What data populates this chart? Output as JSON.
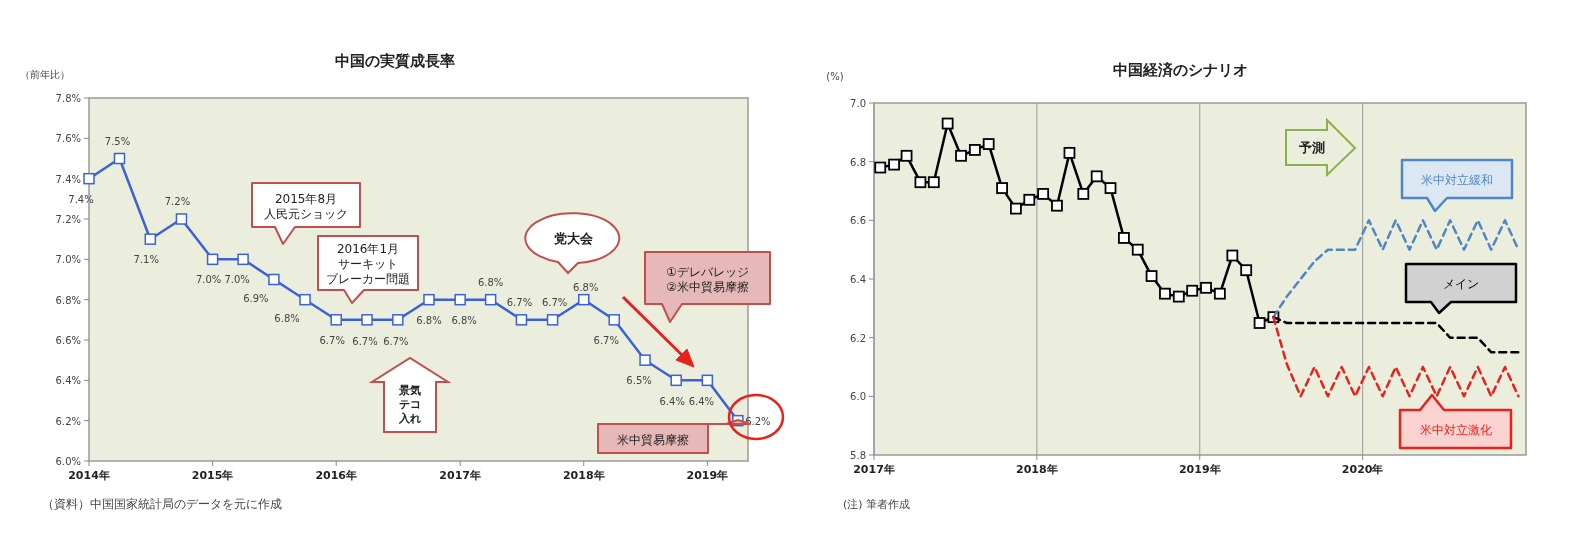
{
  "chart_data": [
    {
      "type": "line",
      "title": "中国の実質成長率",
      "ylabel": "（前年比）",
      "x": [
        "2014-01",
        "2014-04",
        "2014-07",
        "2014-10",
        "2015-01",
        "2015-04",
        "2015-07",
        "2015-10",
        "2016-01",
        "2016-04",
        "2016-07",
        "2016-10",
        "2017-01",
        "2017-04",
        "2017-07",
        "2017-10",
        "2018-01",
        "2018-04",
        "2018-07",
        "2018-10",
        "2019-01",
        "2019-04"
      ],
      "series": [
        {
          "color": "#3a62d6",
          "values": [
            7.4,
            7.5,
            7.1,
            7.2,
            7.0,
            7.0,
            6.9,
            6.8,
            6.7,
            6.7,
            6.7,
            6.8,
            6.8,
            6.8,
            6.7,
            6.7,
            6.8,
            6.7,
            6.5,
            6.4,
            6.4,
            6.2
          ],
          "value_labels": [
            "7.4%",
            "7.5%",
            "7.1%",
            "7.2%",
            "7.0%",
            "7.0%",
            "6.9%",
            "6.8%",
            "6.7%",
            "6.7%",
            "6.7%",
            "6.8%",
            "6.8%",
            "6.8%",
            "6.7%",
            "6.7%",
            "6.8%",
            "6.7%",
            "6.5%",
            "6.4%",
            "6.4%",
            "6.2%"
          ]
        }
      ],
      "marker": "square",
      "line_style": "solid",
      "xlim": [
        "2014-01",
        "2019-05"
      ],
      "xticks": [
        {
          "value": "2014",
          "label": "2014年"
        },
        {
          "value": "2015",
          "label": "2015年"
        },
        {
          "value": "2016",
          "label": "2016年"
        },
        {
          "value": "2017",
          "label": "2017年"
        },
        {
          "value": "2018",
          "label": "2018年"
        },
        {
          "value": "2019",
          "label": "2019年"
        }
      ],
      "ylim": [
        6.0,
        7.8
      ],
      "yticks": [
        {
          "value": 6.0,
          "label": "6.0%"
        },
        {
          "value": 6.2,
          "label": "6.2%"
        },
        {
          "value": 6.4,
          "label": "6.4%"
        },
        {
          "value": 6.6,
          "label": "6.6%"
        },
        {
          "value": 6.8,
          "label": "6.8%"
        },
        {
          "value": 7.0,
          "label": "7.0%"
        },
        {
          "value": 7.2,
          "label": "7.2%"
        },
        {
          "value": 7.4,
          "label": "7.4%"
        },
        {
          "value": 7.6,
          "label": "7.6%"
        },
        {
          "value": 7.8,
          "label": "7.8%"
        }
      ],
      "annotations": [
        "2015年8月人民元ショック",
        "2016年1月サーキットブレーカー問題",
        "景気テコ入れ",
        "党大会",
        "①デレバレッジ\n②米中貿易摩擦",
        "米中貿易摩擦",
        "（資料）中国国家統計局のデータを元に作成"
      ]
    },
    {
      "type": "line",
      "title": "中国経済のシナリオ",
      "ylabel": "(%)",
      "series": [
        {
          "color": "#000000",
          "marker": "square",
          "line_style": "solid",
          "x": [
            "2017-01-15",
            "2017-02-15",
            "2017-03-15",
            "2017-04-15",
            "2017-05-15",
            "2017-06-15",
            "2017-07-15",
            "2017-08-15",
            "2017-09-15",
            "2017-10-15",
            "2017-11-15",
            "2017-12-15",
            "2018-01-15",
            "2018-02-15",
            "2018-03-15",
            "2018-04-15",
            "2018-05-15",
            "2018-06-15",
            "2018-07-15",
            "2018-08-15",
            "2018-09-15",
            "2018-10-15",
            "2018-11-15",
            "2018-12-15",
            "2019-01-15",
            "2019-02-15",
            "2019-03-15",
            "2019-04-15",
            "2019-05-15",
            "2019-06-15"
          ],
          "values": [
            6.78,
            6.79,
            6.82,
            6.73,
            6.73,
            6.93,
            6.82,
            6.84,
            6.86,
            6.71,
            6.64,
            6.67,
            6.69,
            6.65,
            6.83,
            6.69,
            6.75,
            6.71,
            6.54,
            6.5,
            6.41,
            6.35,
            6.34,
            6.36,
            6.37,
            6.35,
            6.48,
            6.43,
            6.25,
            6.27
          ]
        },
        {
          "name": "米中対立緩和",
          "color": "#4f86c6",
          "marker": "none",
          "line_style": "dashed",
          "x": [
            "2019-06-15",
            "2019-07-15",
            "2019-08-15",
            "2019-09-15",
            "2019-10-15",
            "2019-11-15",
            "2019-12-15",
            "2020-01-15",
            "2020-02-15",
            "2020-03-15",
            "2020-04-15",
            "2020-05-15",
            "2020-06-15",
            "2020-07-15",
            "2020-08-15",
            "2020-09-15",
            "2020-10-15",
            "2020-11-15",
            "2020-12-15"
          ],
          "values": [
            6.27,
            6.34,
            6.4,
            6.46,
            6.5,
            6.5,
            6.5,
            6.6,
            6.5,
            6.6,
            6.5,
            6.6,
            6.5,
            6.6,
            6.5,
            6.6,
            6.5,
            6.6,
            6.5
          ]
        },
        {
          "name": "メイン",
          "color": "#000000",
          "marker": "none",
          "line_style": "dashed",
          "x": [
            "2019-06-15",
            "2019-07-15",
            "2019-08-15",
            "2019-09-15",
            "2019-10-15",
            "2019-11-15",
            "2019-12-15",
            "2020-01-15",
            "2020-02-15",
            "2020-03-15",
            "2020-04-15",
            "2020-05-15",
            "2020-06-15",
            "2020-07-15",
            "2020-08-15",
            "2020-09-15",
            "2020-10-15",
            "2020-11-15",
            "2020-12-15"
          ],
          "values": [
            6.27,
            6.25,
            6.25,
            6.25,
            6.25,
            6.25,
            6.25,
            6.25,
            6.25,
            6.25,
            6.25,
            6.25,
            6.25,
            6.2,
            6.2,
            6.2,
            6.15,
            6.15,
            6.15
          ]
        },
        {
          "name": "米中対立激化",
          "color": "#e8211b",
          "marker": "none",
          "line_style": "dashed",
          "x": [
            "2019-06-15",
            "2019-07-15",
            "2019-08-15",
            "2019-09-15",
            "2019-10-15",
            "2019-11-15",
            "2019-12-15",
            "2020-01-15",
            "2020-02-15",
            "2020-03-15",
            "2020-04-15",
            "2020-05-15",
            "2020-06-15",
            "2020-07-15",
            "2020-08-15",
            "2020-09-15",
            "2020-10-15",
            "2020-11-15",
            "2020-12-15"
          ],
          "values": [
            6.27,
            6.11,
            6.0,
            6.1,
            6.0,
            6.1,
            6.0,
            6.1,
            6.0,
            6.1,
            6.0,
            6.1,
            6.0,
            6.1,
            6.0,
            6.1,
            6.0,
            6.1,
            6.0
          ]
        }
      ],
      "grid": "x",
      "xlim": [
        "2017-01-01",
        "2021-01-01"
      ],
      "xticks": [
        {
          "value": "2017",
          "label": "2017年"
        },
        {
          "value": "2018",
          "label": "2018年"
        },
        {
          "value": "2019",
          "label": "2019年"
        },
        {
          "value": "2020",
          "label": "2020年"
        }
      ],
      "ylim": [
        5.8,
        7.0
      ],
      "yticks": [
        {
          "value": 5.8,
          "label": "5.8"
        },
        {
          "value": 6.0,
          "label": "6.0"
        },
        {
          "value": 6.2,
          "label": "6.2"
        },
        {
          "value": 6.4,
          "label": "6.4"
        },
        {
          "value": 6.6,
          "label": "6.6"
        },
        {
          "value": 6.8,
          "label": "6.8"
        },
        {
          "value": 7.0,
          "label": "7.0"
        }
      ],
      "annotations": [
        "予測",
        "(注) 筆者作成"
      ]
    }
  ]
}
